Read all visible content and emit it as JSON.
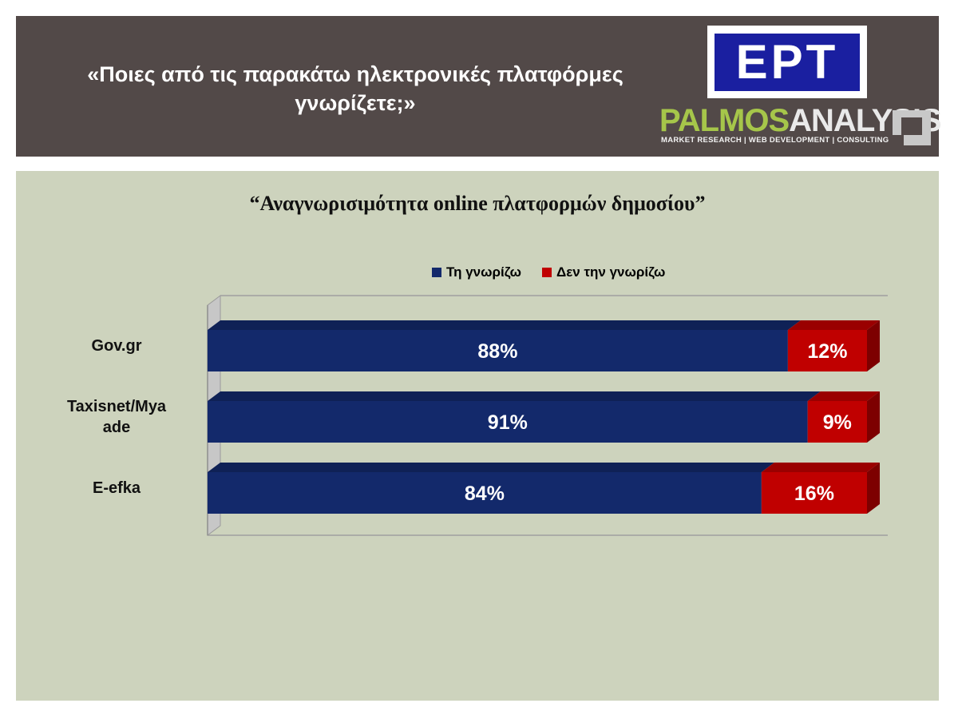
{
  "header": {
    "title_line1": "«Ποιες από τις παρακάτω ηλεκτρονικές πλατφόρμες",
    "title_line2": "γνωρίζετε;»",
    "logo_ert": "ΕΡΤ",
    "logo_palmos_part1": "PALMOS",
    "logo_palmos_part2": "ANALYSIS",
    "logo_palmos_tagline": "MARKET RESEARCH | WEB DEVELOPMENT | CONSULTING"
  },
  "colors": {
    "header_bg": "#524948",
    "panel_bg": "#cdd3bd",
    "series_known": "#13296b",
    "series_unknown": "#c00000"
  },
  "chart_data": {
    "type": "bar",
    "orientation": "horizontal",
    "stacked": true,
    "percent_stacked": true,
    "title": "“Αναγνωρισιμότητα online πλατφορμών δημοσίου”",
    "categories": [
      "Gov.gr",
      "Taxisnet/Myaade",
      "E-efka"
    ],
    "category_labels_display": [
      [
        "Gov.gr"
      ],
      [
        "Taxisnet/Mya",
        "ade"
      ],
      [
        "E-efka"
      ]
    ],
    "series": [
      {
        "name": "Τη γνωρίζω",
        "values": [
          88,
          91,
          84
        ],
        "labels": [
          "88%",
          "91%",
          "84%"
        ],
        "color": "#13296b"
      },
      {
        "name": "Δεν την γνωρίζω",
        "values": [
          12,
          9,
          16
        ],
        "labels": [
          "12%",
          "9%",
          "16%"
        ],
        "color": "#c00000"
      }
    ],
    "xlim": [
      0,
      100
    ],
    "legend_position": "top",
    "grid": false,
    "three_d": true
  }
}
